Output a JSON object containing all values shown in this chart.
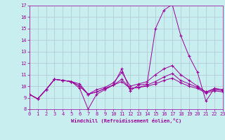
{
  "xlabel": "Windchill (Refroidissement éolien,°C)",
  "background_color": "#c8eef0",
  "line_color": "#9b009b",
  "grid_color": "#b0c8d0",
  "x_values": [
    0,
    1,
    2,
    3,
    4,
    5,
    6,
    7,
    8,
    9,
    10,
    11,
    12,
    13,
    14,
    15,
    16,
    17,
    18,
    19,
    20,
    21,
    22,
    23
  ],
  "line1": [
    9.3,
    8.9,
    9.7,
    10.6,
    10.5,
    10.4,
    9.8,
    8.0,
    9.3,
    9.7,
    10.1,
    11.5,
    9.6,
    10.1,
    10.2,
    15.0,
    16.6,
    17.1,
    14.4,
    12.6,
    11.2,
    8.7,
    9.8,
    9.7
  ],
  "line2": [
    9.3,
    8.9,
    9.7,
    10.6,
    10.5,
    10.4,
    10.2,
    9.3,
    9.7,
    9.9,
    10.3,
    11.2,
    10.0,
    10.2,
    10.4,
    11.0,
    11.5,
    11.8,
    11.0,
    10.5,
    10.0,
    9.5,
    9.8,
    9.7
  ],
  "line3": [
    9.3,
    8.9,
    9.7,
    10.6,
    10.5,
    10.4,
    10.0,
    9.3,
    9.5,
    9.8,
    10.1,
    10.6,
    9.8,
    9.9,
    10.1,
    10.4,
    10.8,
    11.1,
    10.5,
    10.2,
    9.9,
    9.5,
    9.7,
    9.6
  ],
  "line4": [
    9.3,
    8.9,
    9.7,
    10.6,
    10.5,
    10.4,
    10.0,
    9.3,
    9.5,
    9.8,
    10.1,
    10.4,
    9.8,
    9.9,
    10.0,
    10.2,
    10.5,
    10.7,
    10.3,
    10.0,
    9.8,
    9.4,
    9.6,
    9.5
  ],
  "ylim": [
    8,
    17
  ],
  "xlim": [
    0,
    23
  ],
  "yticks": [
    8,
    9,
    10,
    11,
    12,
    13,
    14,
    15,
    16,
    17
  ],
  "xticks": [
    0,
    1,
    2,
    3,
    4,
    5,
    6,
    7,
    8,
    9,
    10,
    11,
    12,
    13,
    14,
    15,
    16,
    17,
    18,
    19,
    20,
    21,
    22,
    23
  ],
  "tick_fontsize": 5,
  "xlabel_fontsize": 5,
  "linewidth": 0.7,
  "markersize": 3
}
